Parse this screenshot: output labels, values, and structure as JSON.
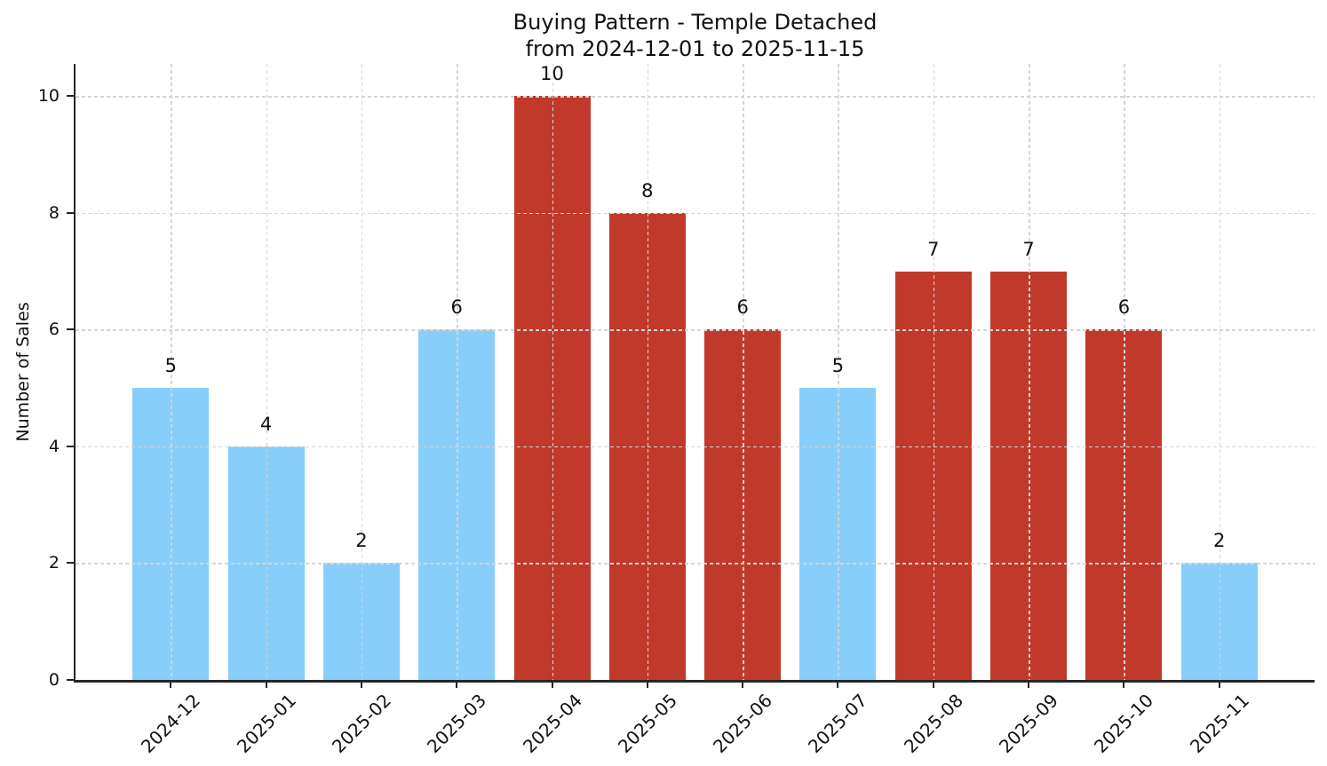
{
  "chart_data": {
    "type": "bar",
    "title": "Buying Pattern - Temple Detached",
    "subtitle": "from 2024-12-01 to 2025-11-15",
    "xlabel": "",
    "ylabel": "Number of Sales",
    "categories": [
      "2024-12",
      "2025-01",
      "2025-02",
      "2025-03",
      "2025-04",
      "2025-05",
      "2025-06",
      "2025-07",
      "2025-08",
      "2025-09",
      "2025-10",
      "2025-11"
    ],
    "values": [
      5,
      4,
      2,
      6,
      10,
      8,
      6,
      5,
      7,
      7,
      6,
      2
    ],
    "value_labels": [
      "5",
      "4",
      "2",
      "6",
      "10",
      "8",
      "6",
      "5",
      "7",
      "7",
      "6",
      "2"
    ],
    "bar_colors": [
      "#87CEFA",
      "#87CEFA",
      "#87CEFA",
      "#87CEFA",
      "#C0392B",
      "#C0392B",
      "#C0392B",
      "#87CEFA",
      "#C0392B",
      "#C0392B",
      "#C0392B",
      "#87CEFA"
    ],
    "yticks": [
      "0",
      "2",
      "4",
      "6",
      "8",
      "10"
    ],
    "ylim": [
      0,
      10.55
    ],
    "x_tick_rotation_deg": 45,
    "grid": "dashed gridlines on both axes, drawn above bars",
    "legend": "none",
    "colors": {
      "bar_blue": "#87CEFA",
      "bar_red": "#C0392B",
      "gridline": "#D5D5D5",
      "axis": "#262626",
      "text": "#111111",
      "background": "#FFFFFF"
    }
  }
}
